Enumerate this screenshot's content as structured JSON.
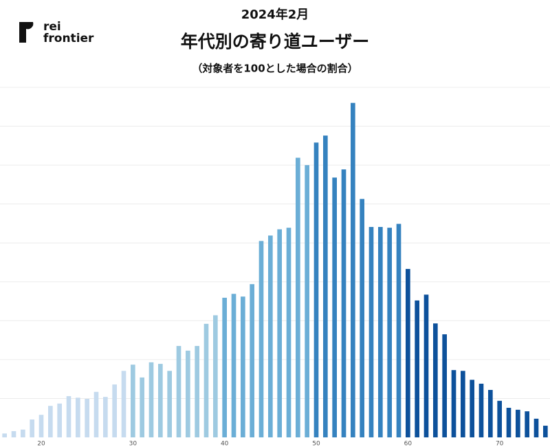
{
  "logo": {
    "line1": "rei",
    "line2": "frontier"
  },
  "chart_data": {
    "type": "bar",
    "title": "2024年2月",
    "subtitle": "年代別の寄り道ユーザー",
    "note": "（対象者を100とした場合の割合）",
    "x": [
      16,
      17,
      18,
      19,
      20,
      21,
      22,
      23,
      24,
      25,
      26,
      27,
      28,
      29,
      30,
      31,
      32,
      33,
      34,
      35,
      36,
      37,
      38,
      39,
      40,
      41,
      42,
      43,
      44,
      45,
      46,
      47,
      48,
      49,
      50,
      51,
      52,
      53,
      54,
      55,
      56,
      57,
      58,
      59,
      60,
      61,
      62,
      63,
      64,
      65,
      66,
      67,
      68,
      69,
      70,
      71,
      72,
      73,
      74,
      75
    ],
    "values": [
      0.1,
      0.16,
      0.2,
      0.46,
      0.58,
      0.81,
      0.87,
      1.06,
      1.02,
      0.99,
      1.17,
      1.04,
      1.36,
      1.71,
      1.87,
      1.54,
      1.93,
      1.89,
      1.71,
      2.35,
      2.23,
      2.35,
      2.92,
      3.14,
      3.59,
      3.69,
      3.62,
      3.94,
      5.05,
      5.19,
      5.35,
      5.39,
      7.19,
      7.0,
      7.58,
      7.76,
      6.68,
      6.89,
      8.6,
      6.13,
      5.41,
      5.41,
      5.39,
      5.49,
      4.33,
      3.52,
      3.67,
      2.93,
      2.65,
      1.73,
      1.71,
      1.48,
      1.38,
      1.22,
      0.94,
      0.76,
      0.71,
      0.67,
      0.48,
      0.3
    ],
    "colors": [
      "#c6dbef",
      "#c6dbef",
      "#c6dbef",
      "#c6dbef",
      "#c6dbef",
      "#c6dbef",
      "#c6dbef",
      "#c6dbef",
      "#c6dbef",
      "#c6dbef",
      "#c6dbef",
      "#c6dbef",
      "#c6dbef",
      "#c6dbef",
      "#9ecae1",
      "#9ecae1",
      "#9ecae1",
      "#9ecae1",
      "#9ecae1",
      "#9ecae1",
      "#9ecae1",
      "#9ecae1",
      "#9ecae1",
      "#9ecae1",
      "#6baed6",
      "#6baed6",
      "#6baed6",
      "#6baed6",
      "#6baed6",
      "#6baed6",
      "#6baed6",
      "#6baed6",
      "#6baed6",
      "#6baed6",
      "#3582bf",
      "#3582bf",
      "#3582bf",
      "#3582bf",
      "#3582bf",
      "#3582bf",
      "#3582bf",
      "#3582bf",
      "#3582bf",
      "#3582bf",
      "#0d519b",
      "#0d519b",
      "#0d519b",
      "#0d519b",
      "#0d519b",
      "#0d519b",
      "#0d519b",
      "#0d519b",
      "#0d519b",
      "#0d519b",
      "#0d519b",
      "#0d519b",
      "#0d519b",
      "#0d519b",
      "#0d519b",
      "#0d519b"
    ],
    "xlim": [
      15.5,
      75.5
    ],
    "xticks": [
      20,
      30,
      40,
      50,
      60,
      70
    ],
    "ylim": [
      0,
      9
    ],
    "yticks": [
      1,
      2,
      3,
      4,
      5,
      6,
      7,
      8,
      9
    ],
    "ytick_labels": false,
    "grid": true
  }
}
